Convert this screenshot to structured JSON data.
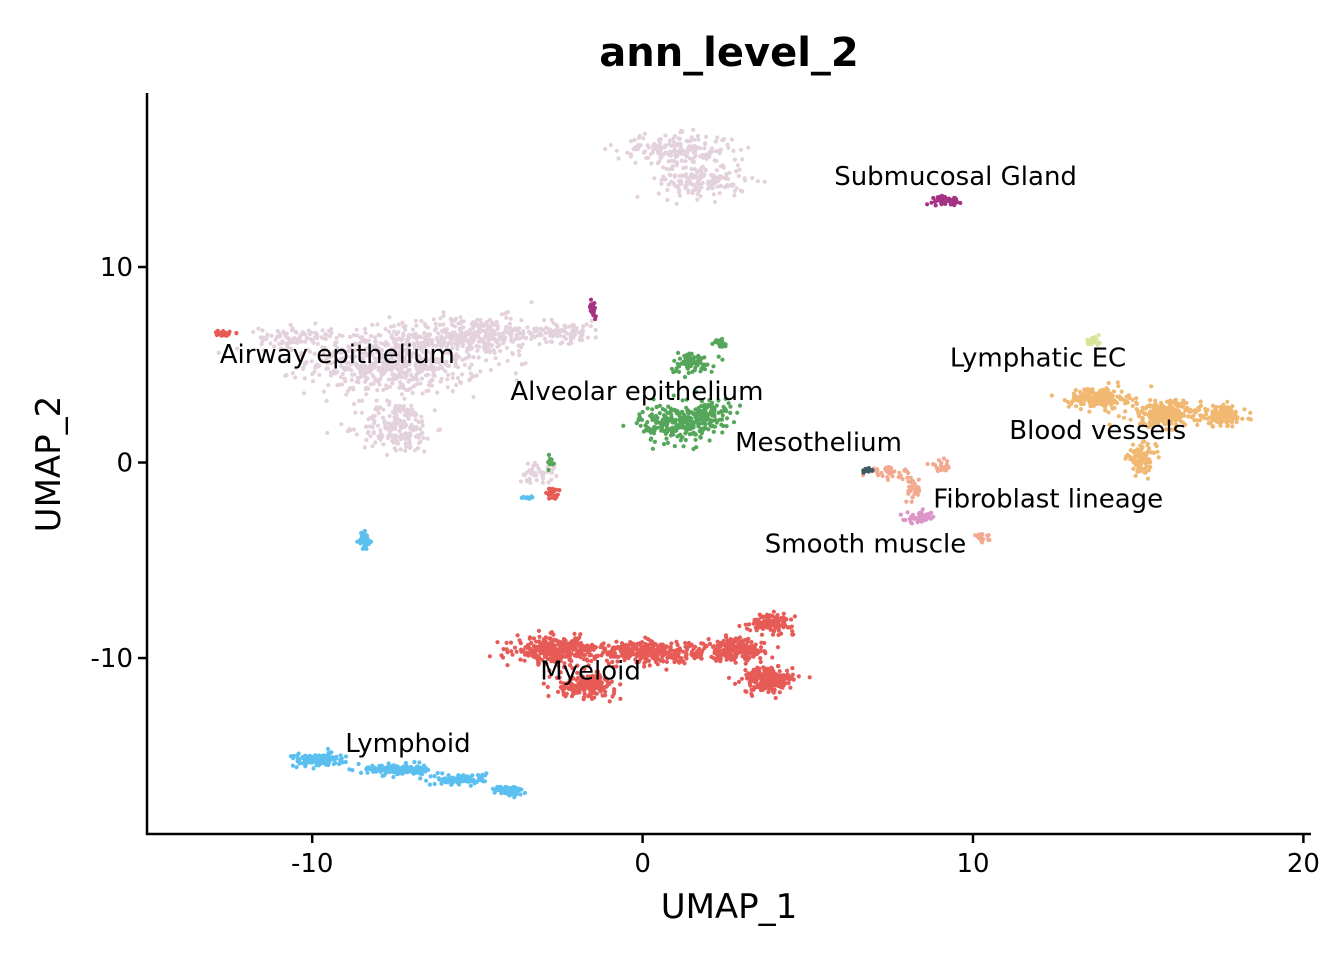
{
  "chart_data": {
    "type": "scatter",
    "title": "ann_level_2",
    "xlabel": "UMAP_1",
    "ylabel": "UMAP_2",
    "xlim": [
      -15,
      20.2
    ],
    "ylim": [
      -19,
      18.9
    ],
    "xticks": [
      -10,
      0,
      10,
      20
    ],
    "yticks": [
      10,
      0,
      -10
    ],
    "xtick_labels": [
      "-10",
      "0",
      "10",
      "20"
    ],
    "ytick_labels": [
      "10",
      "0",
      "-10"
    ],
    "grid": false,
    "legend": "none",
    "cluster_labels": [
      {
        "text": "Submucosal Gland",
        "x": 5.8,
        "y": 14.2
      },
      {
        "text": "Airway epithelium",
        "x": -12.8,
        "y": 5.1
      },
      {
        "text": "Alveolar epithelium",
        "x": -4.0,
        "y": 3.2
      },
      {
        "text": "Lymphatic EC",
        "x": 9.3,
        "y": 4.9
      },
      {
        "text": "Blood vessels",
        "x": 11.1,
        "y": 1.2
      },
      {
        "text": "Mesothelium",
        "x": 2.8,
        "y": 0.6
      },
      {
        "text": "Fibroblast lineage",
        "x": 8.8,
        "y": -2.3
      },
      {
        "text": "Smooth muscle",
        "x": 3.7,
        "y": -4.6
      },
      {
        "text": "Myeloid",
        "x": -3.1,
        "y": -11.1
      },
      {
        "text": "Lymphoid",
        "x": -9.0,
        "y": -14.8
      }
    ],
    "series": [
      {
        "name": "Airway epithelium",
        "color": "#e3d1dc",
        "n": 1700,
        "clusters": [
          {
            "x": -7.5,
            "y": 5.2,
            "sx": 2.4,
            "sy": 1.6
          },
          {
            "x": -5.0,
            "y": 6.5,
            "sx": 1.8,
            "sy": 0.9
          },
          {
            "x": -7.4,
            "y": 1.8,
            "sx": 1.0,
            "sy": 1.2
          },
          {
            "x": -2.4,
            "y": 6.7,
            "sx": 1.1,
            "sy": 0.5
          },
          {
            "x": -10.5,
            "y": 6.4,
            "sx": 1.0,
            "sy": 0.5
          },
          {
            "x": 1.0,
            "y": 16.0,
            "sx": 1.6,
            "sy": 0.7
          },
          {
            "x": 1.8,
            "y": 14.4,
            "sx": 1.2,
            "sy": 0.8
          },
          {
            "x": -3.2,
            "y": -0.5,
            "sx": 0.5,
            "sy": 0.5
          }
        ]
      },
      {
        "name": "Alveolar epithelium",
        "color": "#55a65a",
        "n": 420,
        "clusters": [
          {
            "x": 0.9,
            "y": 2.0,
            "sx": 0.9,
            "sy": 0.9
          },
          {
            "x": 2.0,
            "y": 2.4,
            "sx": 0.6,
            "sy": 0.8
          },
          {
            "x": 1.5,
            "y": 5.1,
            "sx": 0.6,
            "sy": 0.5
          },
          {
            "x": 2.3,
            "y": 6.1,
            "sx": 0.3,
            "sy": 0.25
          },
          {
            "x": -2.8,
            "y": 0.0,
            "sx": 0.15,
            "sy": 0.3
          }
        ]
      },
      {
        "name": "Submucosal Gland",
        "color": "#a53283",
        "n": 60,
        "clusters": [
          {
            "x": 9.2,
            "y": 13.4,
            "sx": 0.4,
            "sy": 0.2
          },
          {
            "x": -1.5,
            "y": 7.9,
            "sx": 0.1,
            "sy": 0.4
          }
        ]
      },
      {
        "name": "Blood vessels",
        "color": "#f0b870",
        "n": 650,
        "clusters": [
          {
            "x": 13.8,
            "y": 3.3,
            "sx": 0.8,
            "sy": 0.5
          },
          {
            "x": 15.8,
            "y": 2.5,
            "sx": 1.0,
            "sy": 0.6
          },
          {
            "x": 17.6,
            "y": 2.4,
            "sx": 0.6,
            "sy": 0.5
          },
          {
            "x": 15.1,
            "y": 0.2,
            "sx": 0.4,
            "sy": 0.6
          }
        ]
      },
      {
        "name": "Lymphatic EC",
        "color": "#d9e49a",
        "n": 30,
        "clusters": [
          {
            "x": 13.6,
            "y": 6.2,
            "sx": 0.2,
            "sy": 0.2
          }
        ]
      },
      {
        "name": "Fibroblast lineage",
        "color": "#f2a98f",
        "n": 110,
        "clusters": [
          {
            "x": 7.5,
            "y": -0.5,
            "sx": 0.6,
            "sy": 0.25
          },
          {
            "x": 8.2,
            "y": -1.4,
            "sx": 0.2,
            "sy": 0.6
          },
          {
            "x": 9.0,
            "y": -0.2,
            "sx": 0.3,
            "sy": 0.3
          },
          {
            "x": 10.3,
            "y": -3.9,
            "sx": 0.3,
            "sy": 0.2
          }
        ]
      },
      {
        "name": "Smooth muscle",
        "color": "#dc95c8",
        "n": 50,
        "clusters": [
          {
            "x": 8.4,
            "y": -2.8,
            "sx": 0.4,
            "sy": 0.25
          }
        ]
      },
      {
        "name": "Mesothelium",
        "color": "#3f5a64",
        "n": 10,
        "clusters": [
          {
            "x": 6.8,
            "y": -0.4,
            "sx": 0.2,
            "sy": 0.1
          }
        ]
      },
      {
        "name": "Myeloid",
        "color": "#e75b57",
        "n": 1500,
        "clusters": [
          {
            "x": -2.6,
            "y": -9.6,
            "sx": 1.1,
            "sy": 0.6
          },
          {
            "x": 0.2,
            "y": -9.7,
            "sx": 1.4,
            "sy": 0.5
          },
          {
            "x": 2.8,
            "y": -9.6,
            "sx": 0.8,
            "sy": 0.5
          },
          {
            "x": 3.8,
            "y": -11.1,
            "sx": 0.7,
            "sy": 0.6
          },
          {
            "x": -1.7,
            "y": -11.4,
            "sx": 0.8,
            "sy": 0.5
          },
          {
            "x": 3.9,
            "y": -8.2,
            "sx": 0.6,
            "sy": 0.4
          },
          {
            "x": -12.7,
            "y": 6.6,
            "sx": 0.3,
            "sy": 0.15
          },
          {
            "x": -2.7,
            "y": -1.6,
            "sx": 0.15,
            "sy": 0.3
          }
        ]
      },
      {
        "name": "Lymphoid",
        "color": "#5bbfef",
        "n": 520,
        "clusters": [
          {
            "x": -9.8,
            "y": -15.2,
            "sx": 0.7,
            "sy": 0.3
          },
          {
            "x": -7.5,
            "y": -15.7,
            "sx": 0.8,
            "sy": 0.25
          },
          {
            "x": -5.5,
            "y": -16.2,
            "sx": 0.7,
            "sy": 0.25
          },
          {
            "x": -4.0,
            "y": -16.8,
            "sx": 0.4,
            "sy": 0.25
          },
          {
            "x": -8.4,
            "y": -4.0,
            "sx": 0.15,
            "sy": 0.4
          },
          {
            "x": -3.5,
            "y": -1.8,
            "sx": 0.2,
            "sy": 0.1
          }
        ]
      }
    ]
  }
}
